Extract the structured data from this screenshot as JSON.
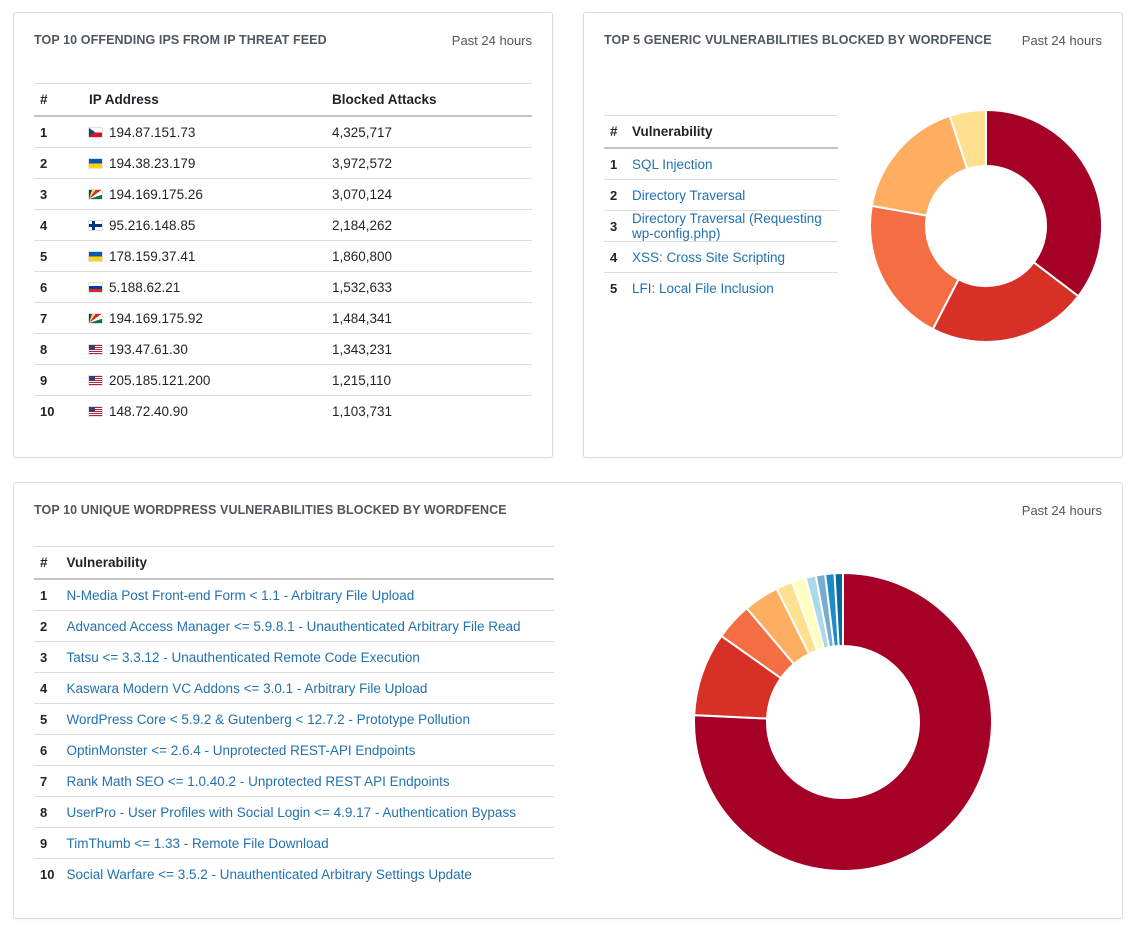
{
  "ip_card": {
    "title": "TOP 10 OFFENDING IPS FROM IP THREAT FEED",
    "period": "Past 24 hours",
    "headers": {
      "rank": "#",
      "ip": "IP Address",
      "attacks": "Blocked Attacks"
    },
    "rows": [
      {
        "rank": "1",
        "flag": "cz",
        "ip": "194.87.151.73",
        "attacks": "4,325,717"
      },
      {
        "rank": "2",
        "flag": "ua",
        "ip": "194.38.23.179",
        "attacks": "3,972,572"
      },
      {
        "rank": "3",
        "flag": "sc",
        "ip": "194.169.175.26",
        "attacks": "3,070,124"
      },
      {
        "rank": "4",
        "flag": "fi",
        "ip": "95.216.148.85",
        "attacks": "2,184,262"
      },
      {
        "rank": "5",
        "flag": "ua",
        "ip": "178.159.37.41",
        "attacks": "1,860,800"
      },
      {
        "rank": "6",
        "flag": "ru",
        "ip": "5.188.62.21",
        "attacks": "1,532,633"
      },
      {
        "rank": "7",
        "flag": "sc",
        "ip": "194.169.175.92",
        "attacks": "1,484,341"
      },
      {
        "rank": "8",
        "flag": "us",
        "ip": "193.47.61.30",
        "attacks": "1,343,231"
      },
      {
        "rank": "9",
        "flag": "us",
        "ip": "205.185.121.200",
        "attacks": "1,215,110"
      },
      {
        "rank": "10",
        "flag": "us",
        "ip": "148.72.40.90",
        "attacks": "1,103,731"
      }
    ]
  },
  "generic_card": {
    "title": "TOP 5 GENERIC VULNERABILITIES BLOCKED BY WORDFENCE",
    "period": "Past 24 hours",
    "headers": {
      "rank": "#",
      "vuln": "Vulnerability"
    },
    "rows": [
      {
        "rank": "1",
        "name": "SQL Injection"
      },
      {
        "rank": "2",
        "name": "Directory Traversal"
      },
      {
        "rank": "3",
        "name": "Directory Traversal (Requesting wp-config.php)"
      },
      {
        "rank": "4",
        "name": "XSS: Cross Site Scripting"
      },
      {
        "rank": "5",
        "name": "LFI: Local File Inclusion"
      }
    ]
  },
  "unique_card": {
    "title": "TOP 10 UNIQUE WORDPRESS VULNERABILITIES BLOCKED BY WORDFENCE",
    "period": "Past 24 hours",
    "headers": {
      "rank": "#",
      "vuln": "Vulnerability"
    },
    "rows": [
      {
        "rank": "1",
        "name": "N-Media Post Front-end Form < 1.1 - Arbitrary File Upload"
      },
      {
        "rank": "2",
        "name": "Advanced Access Manager <= 5.9.8.1 - Unauthenticated Arbitrary File Read"
      },
      {
        "rank": "3",
        "name": "Tatsu <= 3.3.12 - Unauthenticated Remote Code Execution"
      },
      {
        "rank": "4",
        "name": "Kaswara Modern VC Addons <= 3.0.1 - Arbitrary File Upload"
      },
      {
        "rank": "5",
        "name": "WordPress Core < 5.9.2 & Gutenberg < 12.7.2 - Prototype Pollution"
      },
      {
        "rank": "6",
        "name": "OptinMonster <= 2.6.4 - Unprotected REST-API Endpoints"
      },
      {
        "rank": "7",
        "name": "Rank Math SEO <= 1.0.40.2 - Unprotected REST API Endpoints"
      },
      {
        "rank": "8",
        "name": "UserPro - User Profiles with Social Login <= 4.9.17 - Authentication Bypass"
      },
      {
        "rank": "9",
        "name": "TimThumb <= 1.33 - Remote File Download"
      },
      {
        "rank": "10",
        "name": "Social Warfare <= 3.5.2 - Unauthenticated Arbitrary Settings Update"
      }
    ]
  },
  "colors": {
    "link": "#2271b1",
    "border": "#dcdcde",
    "muted_text": "#50575e"
  },
  "chart_data": [
    {
      "type": "pie",
      "style": "donut",
      "categories": [
        "SQL Injection",
        "Directory Traversal",
        "Directory Traversal (Requesting wp-config.php)",
        "XSS: Cross Site Scripting",
        "LFI: Local File Inclusion"
      ],
      "values": [
        35,
        22,
        20,
        17,
        5
      ],
      "colors": [
        "#a50026",
        "#d73027",
        "#f46d43",
        "#fdae61",
        "#fee090"
      ]
    },
    {
      "type": "pie",
      "style": "donut",
      "categories": [
        "N-Media Post Front-end Form < 1.1 - Arbitrary File Upload",
        "Advanced Access Manager <= 5.9.8.1 - Unauthenticated Arbitrary File Read",
        "Tatsu <= 3.3.12 - Unauthenticated Remote Code Execution",
        "Kaswara Modern VC Addons <= 3.0.1 - Arbitrary File Upload",
        "WordPress Core < 5.9.2 & Gutenberg < 12.7.2 - Prototype Pollution",
        "OptinMonster <= 2.6.4 - Unprotected REST-API Endpoints",
        "Rank Math SEO <= 1.0.40.2 - Unprotected REST API Endpoints",
        "UserPro - User Profiles with Social Login <= 4.9.17 - Authentication Bypass",
        "TimThumb <= 1.33 - Remote File Download",
        "Social Warfare <= 3.5.2 - Unauthenticated Arbitrary Settings Update"
      ],
      "values": [
        75.2,
        9.0,
        4.0,
        3.8,
        1.8,
        1.5,
        1.1,
        1.0,
        1.0,
        0.9
      ],
      "colors": [
        "#a50026",
        "#d73027",
        "#f46d43",
        "#fdae61",
        "#fee090",
        "#ffffbf",
        "#abd9e9",
        "#74add1",
        "#1a8cc7",
        "#0a6c9e"
      ]
    }
  ]
}
